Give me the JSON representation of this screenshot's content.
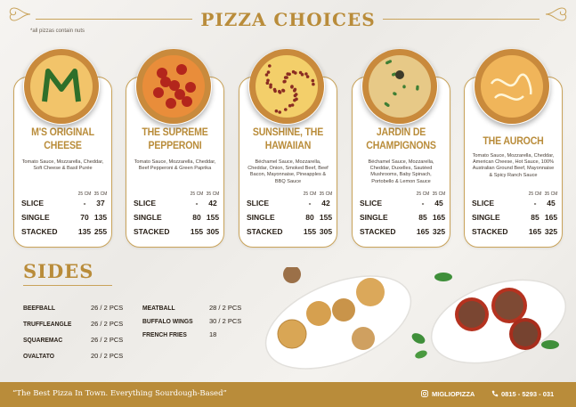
{
  "header": {
    "title": "PIZZA CHOICES",
    "note": "*all pizzas contain nuts"
  },
  "size_headers": [
    "25 CM",
    "35 CM"
  ],
  "pizzas": [
    {
      "name": "M's Original Cheese",
      "description": "Tomato Sauce, Mozzarella, Cheddar, Soft Cheese & Basil Purée",
      "prices": [
        {
          "label": "SLICE",
          "small": "-",
          "large": "37"
        },
        {
          "label": "SINGLE",
          "small": "70",
          "large": "135"
        },
        {
          "label": "STACKED",
          "small": "135",
          "large": "255"
        }
      ]
    },
    {
      "name": "The Supreme Pepperoni",
      "description": "Tomato Sauce, Mozzarella, Cheddar, Beef Pepperoni & Green Paprika",
      "prices": [
        {
          "label": "SLICE",
          "small": "-",
          "large": "42"
        },
        {
          "label": "SINGLE",
          "small": "80",
          "large": "155"
        },
        {
          "label": "STACKED",
          "small": "155",
          "large": "305"
        }
      ]
    },
    {
      "name": "Sunshine, The Hawaiian",
      "description": "Béchamel Sauce, Mozzarella, Cheddar, Onion, Smoked Beef, Beef Bacon, Mayonnaise, Pineapples & BBQ Sauce",
      "prices": [
        {
          "label": "SLICE",
          "small": "-",
          "large": "42"
        },
        {
          "label": "SINGLE",
          "small": "80",
          "large": "155"
        },
        {
          "label": "STACKED",
          "small": "155",
          "large": "305"
        }
      ]
    },
    {
      "name": "Jardin De Champignons",
      "description": "Béchamel Sauce, Mozzarella, Cheddar, Duxelles, Sautéed Mushrooms, Baby Spinach, Portobello & Lemon Sauce",
      "prices": [
        {
          "label": "SLICE",
          "small": "-",
          "large": "45"
        },
        {
          "label": "SINGLE",
          "small": "85",
          "large": "165"
        },
        {
          "label": "STACKED",
          "small": "165",
          "large": "325"
        }
      ]
    },
    {
      "name": "The Auroch",
      "description": "Tomato Sauce, Mozzarella, Cheddar, American Cheese, Hot Sauce, 100% Australian Ground Beef, Mayonnaise & Spicy Ranch Sauce",
      "prices": [
        {
          "label": "SLICE",
          "small": "-",
          "large": "45"
        },
        {
          "label": "SINGLE",
          "small": "85",
          "large": "165"
        },
        {
          "label": "STACKED",
          "small": "165",
          "large": "325"
        }
      ]
    }
  ],
  "sides": {
    "title": "SIDES",
    "left": [
      {
        "name": "BEEFBALL",
        "price": "26 / 2 PCS"
      },
      {
        "name": "TRUFFLEANGLE",
        "price": "26 / 2 PCS"
      },
      {
        "name": "SQUAREMAC",
        "price": "26 / 2 PCS"
      },
      {
        "name": "OVALTATO",
        "price": "20 / 2 PCS"
      }
    ],
    "right": [
      {
        "name": "MEATBALL",
        "price": "28 / 2 PCS"
      },
      {
        "name": "BUFFALO WINGS",
        "price": "30 / 2 PCS"
      },
      {
        "name": "FRENCH FRIES",
        "price": "18"
      }
    ]
  },
  "footer": {
    "quote": "“The Best Pizza In Town. Everything Sourdough-Based”",
    "instagram": "MIGLIOPIZZA",
    "phone": "0815 - 5293 - 031"
  },
  "colors": {
    "accent": "#b98c3a",
    "footer_bg": "#b98c3a",
    "text": "#2a2118"
  }
}
